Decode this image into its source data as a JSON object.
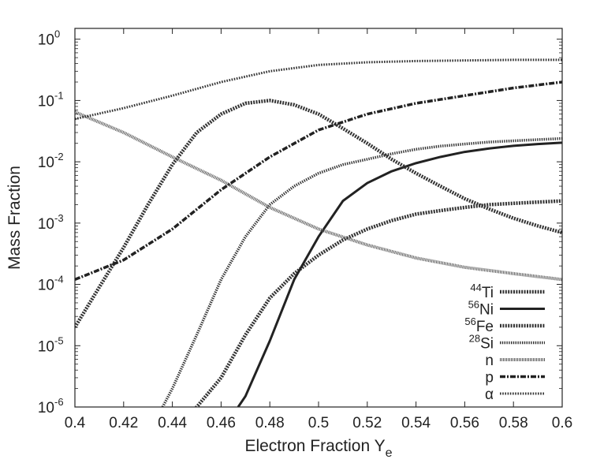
{
  "chart_data": {
    "type": "line",
    "xlabel": "Electron Fraction Y",
    "xlabel_sub": "e",
    "ylabel": "Mass Fraction",
    "x_scale": "linear",
    "y_scale": "log",
    "xlim": [
      0.4,
      0.6
    ],
    "ylim": [
      1e-06,
      1.5
    ],
    "x_ticks": [
      {
        "value": 0.4,
        "label": "0.4"
      },
      {
        "value": 0.42,
        "label": "0.42"
      },
      {
        "value": 0.44,
        "label": "0.44"
      },
      {
        "value": 0.46,
        "label": "0.46"
      },
      {
        "value": 0.48,
        "label": "0.48"
      },
      {
        "value": 0.5,
        "label": "0.5"
      },
      {
        "value": 0.52,
        "label": "0.52"
      },
      {
        "value": 0.54,
        "label": "0.54"
      },
      {
        "value": 0.56,
        "label": "0.56"
      },
      {
        "value": 0.58,
        "label": "0.58"
      },
      {
        "value": 0.6,
        "label": "0.6"
      }
    ],
    "y_ticks": [
      {
        "value": 1e-06,
        "base": "10",
        "exp": "-6"
      },
      {
        "value": 1e-05,
        "base": "10",
        "exp": "-5"
      },
      {
        "value": 0.0001,
        "base": "10",
        "exp": "-4"
      },
      {
        "value": 0.001,
        "base": "10",
        "exp": "-3"
      },
      {
        "value": 0.01,
        "base": "10",
        "exp": "-2"
      },
      {
        "value": 0.1,
        "base": "10",
        "exp": "-1"
      },
      {
        "value": 1,
        "base": "10",
        "exp": "0"
      }
    ],
    "grid": false,
    "legend_position": "bottom-right",
    "series": [
      {
        "name": "Ti",
        "sup": "44",
        "style": "dashed-thick",
        "color": "#333333",
        "x": [
          0.44,
          0.45,
          0.46,
          0.47,
          0.48,
          0.49,
          0.5,
          0.51,
          0.52,
          0.53,
          0.54,
          0.55,
          0.56,
          0.57,
          0.58,
          0.59,
          0.6
        ],
        "y": [
          5e-07,
          1e-06,
          3e-06,
          1.5e-05,
          6e-05,
          0.00015,
          0.0003,
          0.00053,
          0.0008,
          0.0011,
          0.0014,
          0.0016,
          0.0018,
          0.002,
          0.0021,
          0.0022,
          0.0023
        ]
      },
      {
        "name": "Ni",
        "sup": "56",
        "style": "solid",
        "color": "#222222",
        "x": [
          0.467,
          0.47,
          0.48,
          0.49,
          0.5,
          0.51,
          0.52,
          0.53,
          0.54,
          0.55,
          0.56,
          0.57,
          0.58,
          0.59,
          0.6
        ],
        "y": [
          1e-06,
          1.5e-06,
          1.2e-05,
          0.00012,
          0.0006,
          0.0023,
          0.0045,
          0.007,
          0.0095,
          0.012,
          0.0145,
          0.0165,
          0.0182,
          0.0195,
          0.0205
        ]
      },
      {
        "name": "Fe",
        "sup": "56",
        "style": "dashed-thick",
        "color": "#333333",
        "x": [
          0.4,
          0.41,
          0.42,
          0.43,
          0.44,
          0.45,
          0.46,
          0.47,
          0.48,
          0.49,
          0.5,
          0.51,
          0.52,
          0.53,
          0.54,
          0.55,
          0.56,
          0.57,
          0.58,
          0.59,
          0.6
        ],
        "y": [
          2e-05,
          9e-05,
          0.0004,
          0.002,
          0.009,
          0.03,
          0.06,
          0.09,
          0.1,
          0.085,
          0.06,
          0.035,
          0.02,
          0.011,
          0.0065,
          0.004,
          0.0025,
          0.0017,
          0.0012,
          0.0009,
          0.0007
        ]
      },
      {
        "name": "Si",
        "sup": "28",
        "style": "dotted-thick",
        "color": "#333333",
        "x": [
          0.436,
          0.44,
          0.45,
          0.46,
          0.47,
          0.48,
          0.49,
          0.5,
          0.51,
          0.52,
          0.53,
          0.54,
          0.55,
          0.56,
          0.57,
          0.58,
          0.59,
          0.6
        ],
        "y": [
          1e-06,
          2e-06,
          1.5e-05,
          0.00012,
          0.0006,
          0.002,
          0.004,
          0.0065,
          0.009,
          0.011,
          0.0135,
          0.016,
          0.018,
          0.0195,
          0.021,
          0.022,
          0.023,
          0.024
        ]
      },
      {
        "name": "n",
        "sup": "",
        "style": "hatched",
        "color": "#555555",
        "x": [
          0.4,
          0.42,
          0.44,
          0.46,
          0.48,
          0.5,
          0.52,
          0.54,
          0.56,
          0.58,
          0.6
        ],
        "y": [
          0.065,
          0.03,
          0.012,
          0.005,
          0.0018,
          0.0008,
          0.00044,
          0.00027,
          0.00019,
          0.00015,
          0.00012
        ]
      },
      {
        "name": "p",
        "sup": "",
        "style": "dash-dot",
        "color": "#222222",
        "x": [
          0.4,
          0.42,
          0.44,
          0.46,
          0.48,
          0.5,
          0.52,
          0.54,
          0.56,
          0.58,
          0.6
        ],
        "y": [
          0.00012,
          0.00025,
          0.0008,
          0.0035,
          0.012,
          0.033,
          0.06,
          0.09,
          0.12,
          0.16,
          0.2
        ]
      },
      {
        "name": "α",
        "sup": "",
        "style": "dotted",
        "color": "#333333",
        "x": [
          0.4,
          0.42,
          0.44,
          0.46,
          0.48,
          0.5,
          0.52,
          0.54,
          0.56,
          0.58,
          0.6
        ],
        "y": [
          0.05,
          0.075,
          0.12,
          0.2,
          0.3,
          0.38,
          0.42,
          0.44,
          0.45,
          0.46,
          0.46
        ]
      }
    ]
  }
}
